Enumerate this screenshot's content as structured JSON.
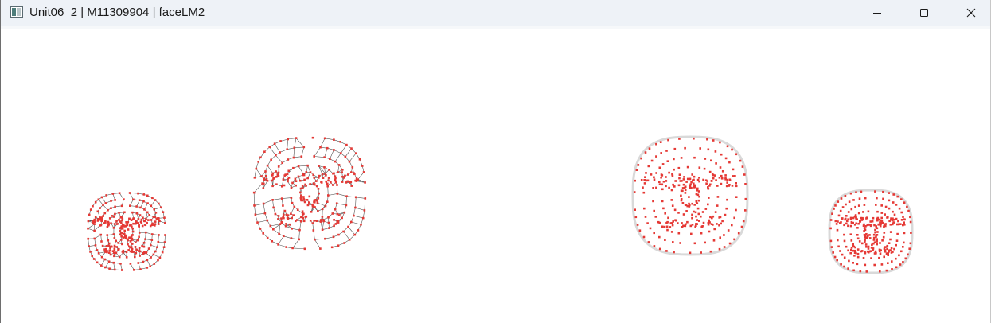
{
  "window": {
    "title": "Unit06_2 | M11309904 | faceLM2",
    "icon": "app-window-icon",
    "controls": {
      "minimize_icon": "minimize-icon",
      "maximize_icon": "maximize-icon",
      "close_icon": "close-icon"
    }
  },
  "viewport": {
    "background": "#ffffff",
    "point_color": "#e53935",
    "mesh_color": "#555555",
    "faces": [
      {
        "name": "face-mesh-small-left",
        "style": "mesh"
      },
      {
        "name": "face-mesh-large-left",
        "style": "mesh"
      },
      {
        "name": "face-points-large-right",
        "style": "points"
      },
      {
        "name": "face-points-small-right",
        "style": "points"
      }
    ]
  }
}
